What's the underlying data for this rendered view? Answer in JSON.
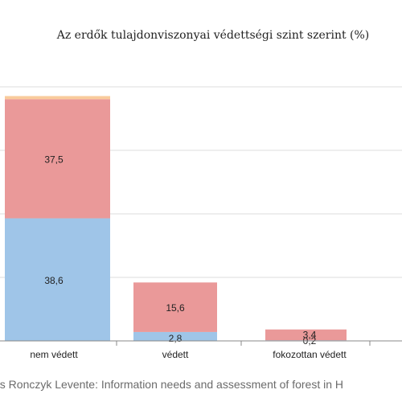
{
  "chart_data": {
    "type": "bar",
    "stacked": true,
    "title": "Az erdők tulajdonviszonyai védettségi szint szerint (%)",
    "categories": [
      "nem védett",
      "védett",
      "fokozottan védett"
    ],
    "series": [
      {
        "values": [
          38.6,
          2.8,
          0.2
        ],
        "labels": [
          "38,6",
          "2,8",
          "0,2"
        ],
        "color": "#9fc5e8"
      },
      {
        "values": [
          37.5,
          15.6,
          3.4
        ],
        "labels": [
          "37,5",
          "15,6",
          "3,4"
        ],
        "color": "#ea9999"
      },
      {
        "values": [
          1.0,
          0,
          0
        ],
        "labels": [
          "",
          "",
          ""
        ],
        "color": "#f9cb9c"
      }
    ],
    "ylim": [
      0,
      80
    ],
    "grid": true,
    "xlabel": "",
    "ylabel": ""
  },
  "footer": {
    "caption": "és Ronczyk Levente: Information needs and assessment of forest in H"
  }
}
